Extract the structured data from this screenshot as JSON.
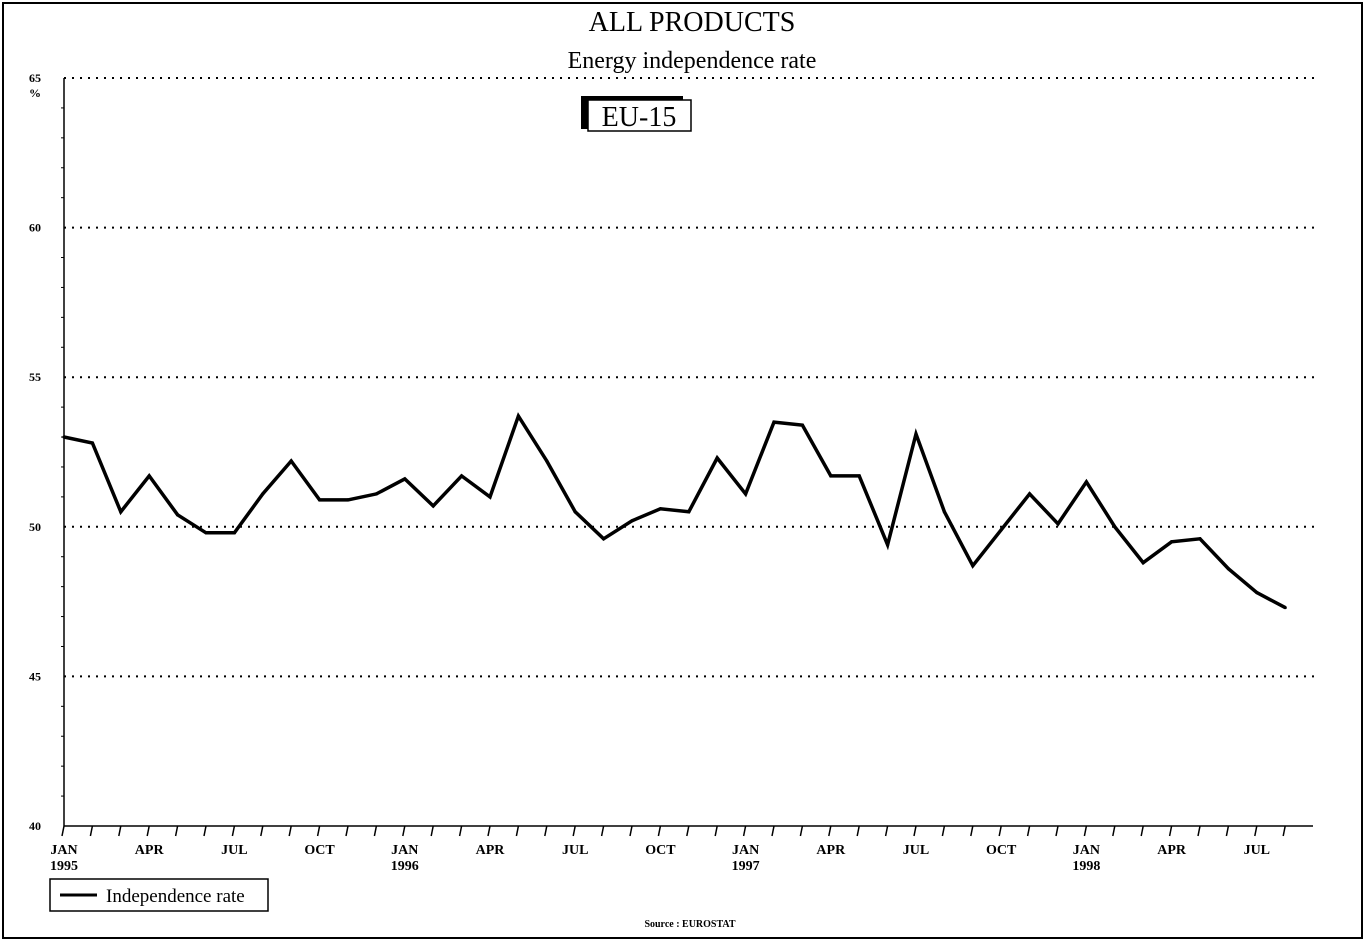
{
  "chart_data": {
    "type": "line",
    "title": "ALL PRODUCTS",
    "subtitle": "Energy independence rate",
    "region_label": "EU-15",
    "ylabel": "%",
    "xlabel": "",
    "ylim": [
      40,
      65
    ],
    "yticks": [
      "40",
      "45",
      "50",
      "55",
      "60",
      "65"
    ],
    "grid": true,
    "legend_position": "bottom-left",
    "source": "Source : EUROSTAT",
    "x_tick_labels": [
      {
        "month": 0,
        "label": "JAN",
        "year": "1995"
      },
      {
        "month": 3,
        "label": "APR",
        "year": ""
      },
      {
        "month": 6,
        "label": "JUL",
        "year": ""
      },
      {
        "month": 9,
        "label": "OCT",
        "year": ""
      },
      {
        "month": 12,
        "label": "JAN",
        "year": "1996"
      },
      {
        "month": 15,
        "label": "APR",
        "year": ""
      },
      {
        "month": 18,
        "label": "JUL",
        "year": ""
      },
      {
        "month": 21,
        "label": "OCT",
        "year": ""
      },
      {
        "month": 24,
        "label": "JAN",
        "year": "1997"
      },
      {
        "month": 27,
        "label": "APR",
        "year": ""
      },
      {
        "month": 30,
        "label": "JUL",
        "year": ""
      },
      {
        "month": 33,
        "label": "OCT",
        "year": ""
      },
      {
        "month": 36,
        "label": "JAN",
        "year": "1998"
      },
      {
        "month": 39,
        "label": "APR",
        "year": ""
      },
      {
        "month": 42,
        "label": "JUL",
        "year": ""
      }
    ],
    "series": [
      {
        "name": "Independence rate",
        "color": "#000000",
        "values": [
          53.0,
          52.8,
          50.5,
          51.7,
          50.4,
          49.8,
          49.8,
          51.1,
          52.2,
          50.9,
          50.9,
          51.1,
          51.6,
          50.7,
          51.7,
          51.0,
          53.7,
          52.2,
          50.5,
          49.6,
          50.2,
          50.6,
          50.5,
          52.3,
          51.1,
          53.5,
          53.4,
          51.7,
          51.7,
          49.4,
          53.1,
          50.5,
          48.7,
          49.9,
          51.1,
          50.1,
          51.5,
          50.0,
          48.8,
          49.5,
          49.6,
          48.6,
          47.8,
          47.3
        ]
      }
    ]
  }
}
